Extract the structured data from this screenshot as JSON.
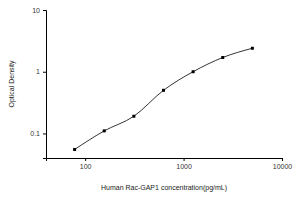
{
  "chart_data": {
    "type": "line",
    "x_label": "Human Rac-GAP1 concentration(pg/mL)",
    "y_label": "Optical Density",
    "x": [
      78.13,
      156.25,
      312.5,
      625,
      1250,
      2500,
      5000
    ],
    "values": [
      0.055,
      0.11,
      0.19,
      0.5,
      1.0,
      1.7,
      2.4
    ],
    "color": "#000000",
    "marker": "square",
    "line_style": "solid",
    "log": true,
    "grid": false,
    "xlim": [
      40,
      10000
    ],
    "xticks": [
      100,
      1000,
      10000
    ],
    "ylim": [
      0.04,
      10
    ],
    "yticks": [
      0.1,
      1,
      10
    ]
  }
}
